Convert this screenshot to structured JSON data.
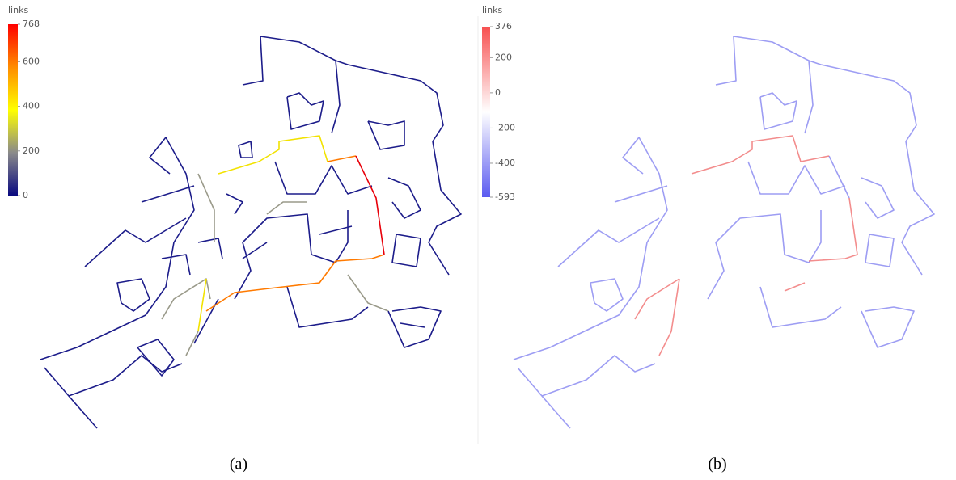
{
  "panels": [
    {
      "legend": {
        "title": "links",
        "ticks": [
          768,
          600,
          400,
          200,
          0
        ],
        "colors": [
          "#ff0000",
          "#ff8c00",
          "#ffff00",
          "#8a8a8a",
          "#0a0a80"
        ]
      },
      "caption": "(a)"
    },
    {
      "legend": {
        "title": "links",
        "ticks": [
          376,
          200,
          0,
          -200,
          -400,
          -593
        ],
        "colors": [
          "#f75050",
          "#ffffff",
          "#5a5af0"
        ]
      },
      "caption": "(b)"
    }
  ]
}
